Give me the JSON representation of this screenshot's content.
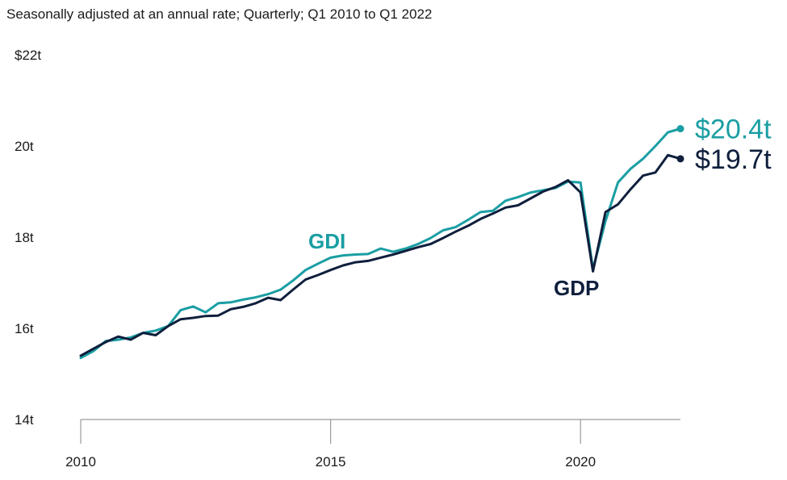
{
  "chart_data": {
    "type": "line",
    "subtitle": "Seasonally adjusted at an annual rate; Quarterly; Q1 2010 to Q1 2022",
    "ylim": [
      14,
      22
    ],
    "xlim": [
      2010,
      2022
    ],
    "y_ticks": [
      {
        "value": 22,
        "label": "$22t"
      },
      {
        "value": 20,
        "label": "20t"
      },
      {
        "value": 18,
        "label": "18t"
      },
      {
        "value": 16,
        "label": "16t"
      },
      {
        "value": 14,
        "label": "14t"
      }
    ],
    "x_ticks": [
      {
        "value": 2010,
        "label": "2010"
      },
      {
        "value": 2015,
        "label": "2015"
      },
      {
        "value": 2020,
        "label": "2020"
      }
    ],
    "series": [
      {
        "name": "GDI",
        "label": "GDI",
        "color": "#1a9ea3",
        "end_label": "$20.4t",
        "x": [
          2010.0,
          2010.25,
          2010.5,
          2010.75,
          2011.0,
          2011.25,
          2011.5,
          2011.75,
          2012.0,
          2012.25,
          2012.5,
          2012.75,
          2013.0,
          2013.25,
          2013.5,
          2013.75,
          2014.0,
          2014.25,
          2014.5,
          2014.75,
          2015.0,
          2015.25,
          2015.5,
          2015.75,
          2016.0,
          2016.25,
          2016.5,
          2016.75,
          2017.0,
          2017.25,
          2017.5,
          2017.75,
          2018.0,
          2018.25,
          2018.5,
          2018.75,
          2019.0,
          2019.25,
          2019.5,
          2019.75,
          2020.0,
          2020.25,
          2020.5,
          2020.75,
          2021.0,
          2021.25,
          2021.5,
          2021.75,
          2022.0
        ],
        "values": [
          15.35,
          15.5,
          15.72,
          15.75,
          15.8,
          15.9,
          15.95,
          16.05,
          16.4,
          16.48,
          16.35,
          16.55,
          16.57,
          16.63,
          16.68,
          16.75,
          16.85,
          17.05,
          17.28,
          17.42,
          17.55,
          17.6,
          17.62,
          17.63,
          17.75,
          17.68,
          17.75,
          17.85,
          17.98,
          18.15,
          18.22,
          18.38,
          18.55,
          18.58,
          18.8,
          18.88,
          18.98,
          19.03,
          19.08,
          19.22,
          19.2,
          17.3,
          18.35,
          19.2,
          19.5,
          19.72,
          20.0,
          20.3,
          20.38
        ]
      },
      {
        "name": "GDP",
        "label": "GDP",
        "color": "#0f1f3d",
        "end_label": "$19.7t",
        "x": [
          2010.0,
          2010.25,
          2010.5,
          2010.75,
          2011.0,
          2011.25,
          2011.5,
          2011.75,
          2012.0,
          2012.25,
          2012.5,
          2012.75,
          2013.0,
          2013.25,
          2013.5,
          2013.75,
          2014.0,
          2014.25,
          2014.5,
          2014.75,
          2015.0,
          2015.25,
          2015.5,
          2015.75,
          2016.0,
          2016.25,
          2016.5,
          2016.75,
          2017.0,
          2017.25,
          2017.5,
          2017.75,
          2018.0,
          2018.25,
          2018.5,
          2018.75,
          2019.0,
          2019.25,
          2019.5,
          2019.75,
          2020.0,
          2020.25,
          2020.5,
          2020.75,
          2021.0,
          2021.25,
          2021.5,
          2021.75,
          2022.0
        ],
        "values": [
          15.4,
          15.55,
          15.7,
          15.82,
          15.75,
          15.9,
          15.85,
          16.05,
          16.2,
          16.23,
          16.27,
          16.28,
          16.42,
          16.47,
          16.55,
          16.67,
          16.62,
          16.85,
          17.07,
          17.17,
          17.28,
          17.38,
          17.45,
          17.48,
          17.55,
          17.62,
          17.7,
          17.78,
          17.85,
          17.98,
          18.12,
          18.25,
          18.4,
          18.52,
          18.65,
          18.7,
          18.85,
          19.0,
          19.1,
          19.25,
          18.98,
          17.25,
          18.55,
          18.72,
          19.05,
          19.35,
          19.42,
          19.8,
          19.72
        ]
      }
    ]
  }
}
